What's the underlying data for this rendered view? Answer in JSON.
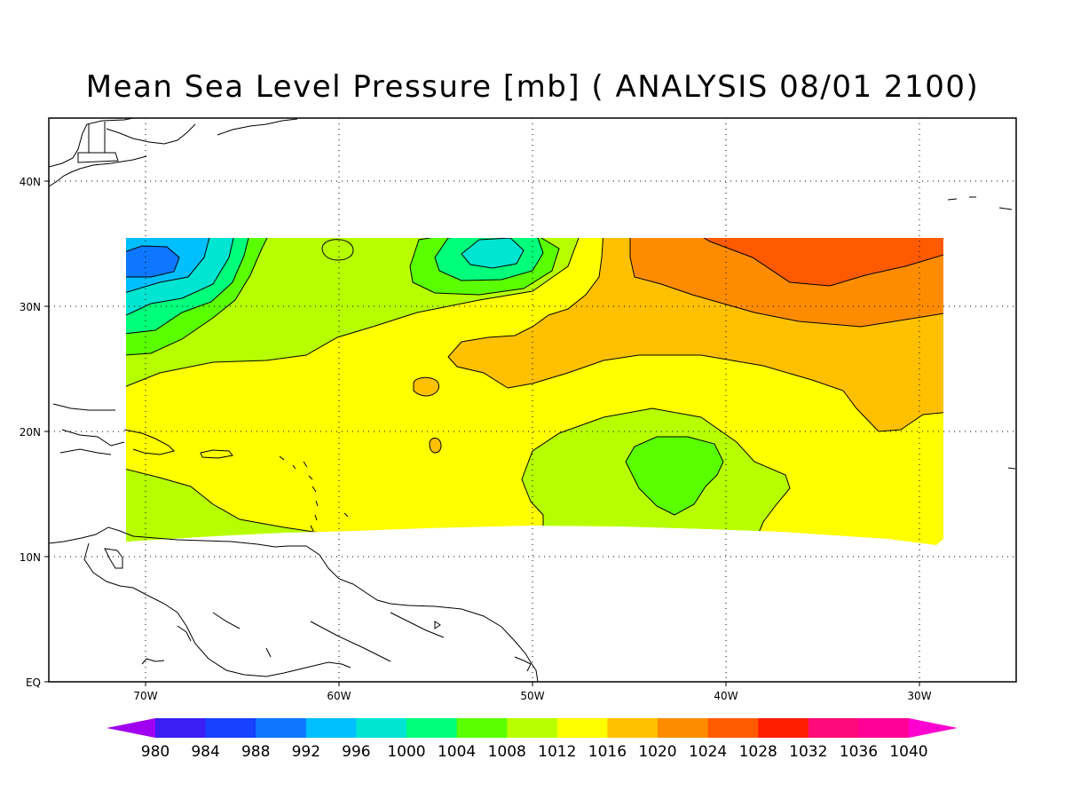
{
  "title": "Mean Sea Level Pressure [mb] ( ANALYSIS 08/01 2100)",
  "map": {
    "lon_range": [
      -75,
      -25
    ],
    "lat_range": [
      0,
      45
    ],
    "lat_labels": [
      "EQ",
      "10N",
      "20N",
      "30N",
      "40N"
    ],
    "lon_labels": [
      "70W",
      "60W",
      "50W",
      "40W",
      "30W"
    ],
    "grid": "dotted"
  },
  "field": {
    "name": "mean sea level pressure",
    "units": "mb",
    "domain_lon": [
      -71,
      -28.8
    ],
    "domain_lat": [
      11,
      35.5
    ],
    "features": [
      {
        "kind": "low",
        "lon": -69,
        "lat": 33.8,
        "min_mb": 990
      },
      {
        "kind": "low",
        "lon": -52,
        "lat": 34,
        "min_mb": 998
      },
      {
        "kind": "low",
        "lon": -43,
        "lat": 17,
        "min_mb": 1008
      },
      {
        "kind": "high",
        "lon": -35,
        "lat": 34,
        "max_mb": 1028
      }
    ]
  },
  "colorbar": {
    "labels": [
      "980",
      "984",
      "988",
      "992",
      "996",
      "1000",
      "1004",
      "1008",
      "1012",
      "1016",
      "1020",
      "1024",
      "1028",
      "1032",
      "1036",
      "1040"
    ],
    "colors": [
      "#a000f0",
      "#3a1ff5",
      "#1740ff",
      "#0d78ff",
      "#00bfff",
      "#00e5d2",
      "#00ff7a",
      "#5aff00",
      "#b7ff00",
      "#ffff00",
      "#ffc000",
      "#ff8c00",
      "#ff5a00",
      "#ff1e00",
      "#ff0a78",
      "#ff0096",
      "#ff00d0"
    ]
  }
}
